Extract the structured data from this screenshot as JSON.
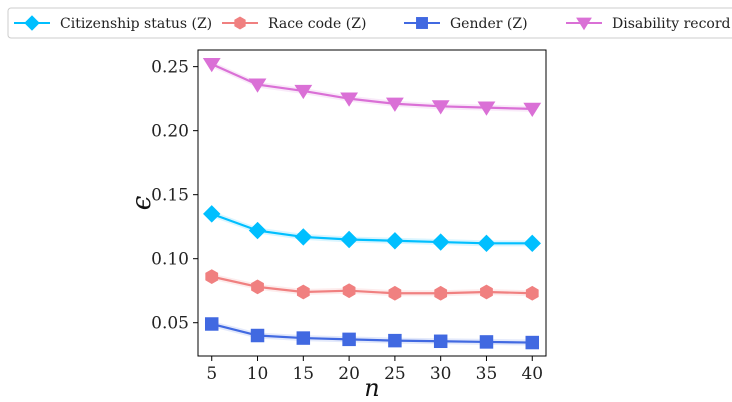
{
  "chart_data": {
    "type": "line",
    "xlabel": "n",
    "ylabel": "ϵ",
    "x": [
      5,
      10,
      15,
      20,
      25,
      30,
      35,
      40
    ],
    "xticks": [
      "5",
      "10",
      "15",
      "20",
      "25",
      "30",
      "35",
      "40"
    ],
    "xlim": [
      3.5,
      41.5
    ],
    "ylim": [
      0.024,
      0.263
    ],
    "yticks": [
      "0.05",
      "0.10",
      "0.15",
      "0.20",
      "0.25"
    ],
    "ytick_values": [
      0.05,
      0.1,
      0.15,
      0.2,
      0.25
    ],
    "grid": false,
    "legend_placement": "top",
    "series": [
      {
        "name": "Citizenship status (Z)",
        "color": "#00bfff",
        "marker": "diamond",
        "values": [
          0.135,
          0.122,
          0.117,
          0.115,
          0.114,
          0.113,
          0.112,
          0.112
        ]
      },
      {
        "name": "Race code (Z)",
        "color": "#f08080",
        "marker": "hexagon",
        "values": [
          0.086,
          0.078,
          0.074,
          0.075,
          0.073,
          0.073,
          0.074,
          0.073
        ]
      },
      {
        "name": "Gender (Z)",
        "color": "#4169e1",
        "marker": "square",
        "values": [
          0.049,
          0.04,
          0.038,
          0.037,
          0.036,
          0.0355,
          0.035,
          0.0345
        ]
      },
      {
        "name": "Disability record (Z)",
        "color": "#da70d6",
        "marker": "triangle-down",
        "values": [
          0.252,
          0.236,
          0.231,
          0.225,
          0.221,
          0.219,
          0.218,
          0.217
        ]
      }
    ]
  }
}
